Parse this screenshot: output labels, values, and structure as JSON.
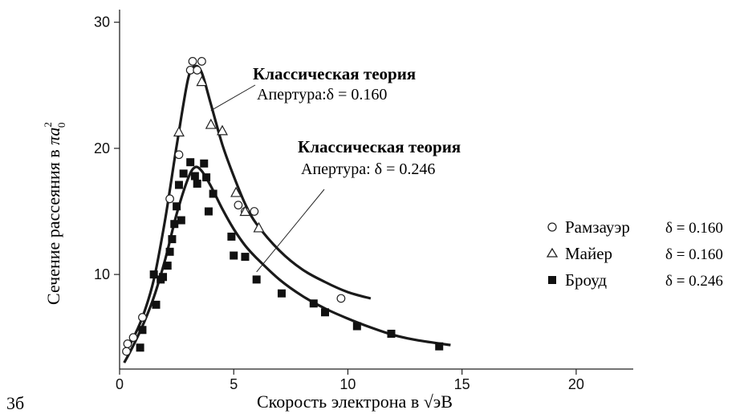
{
  "figure_label": "3б",
  "chart_data": {
    "type": "scatter",
    "xlabel": "Скорость электрона в √эВ",
    "ylabel_main": "Сечение рассеяния  в ",
    "ylabel_unit": "πa",
    "ylabel_unit_sup": "2",
    "ylabel_unit_sub": "0",
    "xlim": [
      0,
      22.5
    ],
    "ylim": [
      2.5,
      31
    ],
    "x_ticks": [
      0,
      5,
      10,
      15,
      20
    ],
    "x_tick_labels": [
      "0",
      "5",
      "10",
      "15",
      "20"
    ],
    "y_ticks": [
      10,
      20,
      30
    ],
    "y_tick_labels": [
      "10",
      "20",
      "30"
    ],
    "annotations": [
      {
        "title": "Классическая теория",
        "line2": "Апертура:δ = 0.160",
        "points_to_x": 4.0,
        "points_to_y": 23.0
      },
      {
        "title": "Классическая теория",
        "line2": "Апертура: δ = 0.246",
        "points_to_x": 6.0,
        "points_to_y": 10.2
      }
    ],
    "curves": [
      {
        "delta": "δ = 0.160",
        "x": [
          0.2,
          0.5,
          1.0,
          1.5,
          2.0,
          2.5,
          3.0,
          3.3,
          3.6,
          4.0,
          4.5,
          5.0,
          5.5,
          6.0,
          7.0,
          8.0,
          9.0,
          10.0,
          11.0
        ],
        "y": [
          3.8,
          4.6,
          6.6,
          9.6,
          14.4,
          20.2,
          25.5,
          26.5,
          26.0,
          23.5,
          20.3,
          17.8,
          15.6,
          14.0,
          11.9,
          10.4,
          9.4,
          8.6,
          8.1
        ]
      },
      {
        "delta": "δ = 0.246",
        "x": [
          0.2,
          0.5,
          1.0,
          1.5,
          2.0,
          2.5,
          3.0,
          3.3,
          3.6,
          4.0,
          4.5,
          5.0,
          5.5,
          6.0,
          7.0,
          8.0,
          9.0,
          10.0,
          11.0,
          12.0,
          13.0,
          14.5
        ],
        "y": [
          3.0,
          4.0,
          5.9,
          8.2,
          11.2,
          14.8,
          17.6,
          18.5,
          18.2,
          17.0,
          15.2,
          13.6,
          12.3,
          11.3,
          9.6,
          8.3,
          7.3,
          6.5,
          5.8,
          5.2,
          4.8,
          4.4
        ]
      }
    ],
    "series": [
      {
        "name": "Рамзауэр",
        "delta": "δ = 0.160",
        "marker": "circle",
        "x": [
          0.3,
          0.35,
          0.6,
          1.0,
          2.2,
          2.6,
          3.1,
          3.2,
          3.4,
          3.6,
          5.2,
          5.5,
          5.9,
          9.7
        ],
        "y": [
          3.9,
          4.5,
          5.0,
          6.6,
          16.0,
          19.5,
          26.2,
          26.9,
          26.2,
          26.9,
          15.5,
          15.0,
          15.0,
          8.1
        ]
      },
      {
        "name": "Майер",
        "delta": "δ = 0.160",
        "marker": "triangle",
        "x": [
          2.6,
          3.6,
          4.0,
          4.5,
          5.1,
          5.5,
          6.1
        ],
        "y": [
          21.3,
          25.3,
          21.9,
          21.4,
          16.5,
          15.0,
          13.7
        ]
      },
      {
        "name": "Броуд",
        "delta": "δ = 0.246",
        "marker": "square",
        "x": [
          0.9,
          1.0,
          1.5,
          1.6,
          1.8,
          1.9,
          2.1,
          2.2,
          2.3,
          2.4,
          2.5,
          2.6,
          2.7,
          2.8,
          3.1,
          3.3,
          3.4,
          3.7,
          3.8,
          3.9,
          4.1,
          4.9,
          5.0,
          5.5,
          6.0,
          7.1,
          8.5,
          9.0,
          10.4,
          11.9,
          14.0
        ],
        "y": [
          4.2,
          5.6,
          10.0,
          7.6,
          9.6,
          9.8,
          10.7,
          11.8,
          12.8,
          14.0,
          15.4,
          17.1,
          14.3,
          18.0,
          18.9,
          17.8,
          17.2,
          18.8,
          17.7,
          15.0,
          16.4,
          13.0,
          11.5,
          11.4,
          9.6,
          8.5,
          7.7,
          7.0,
          5.9,
          5.3,
          4.3
        ]
      }
    ]
  }
}
